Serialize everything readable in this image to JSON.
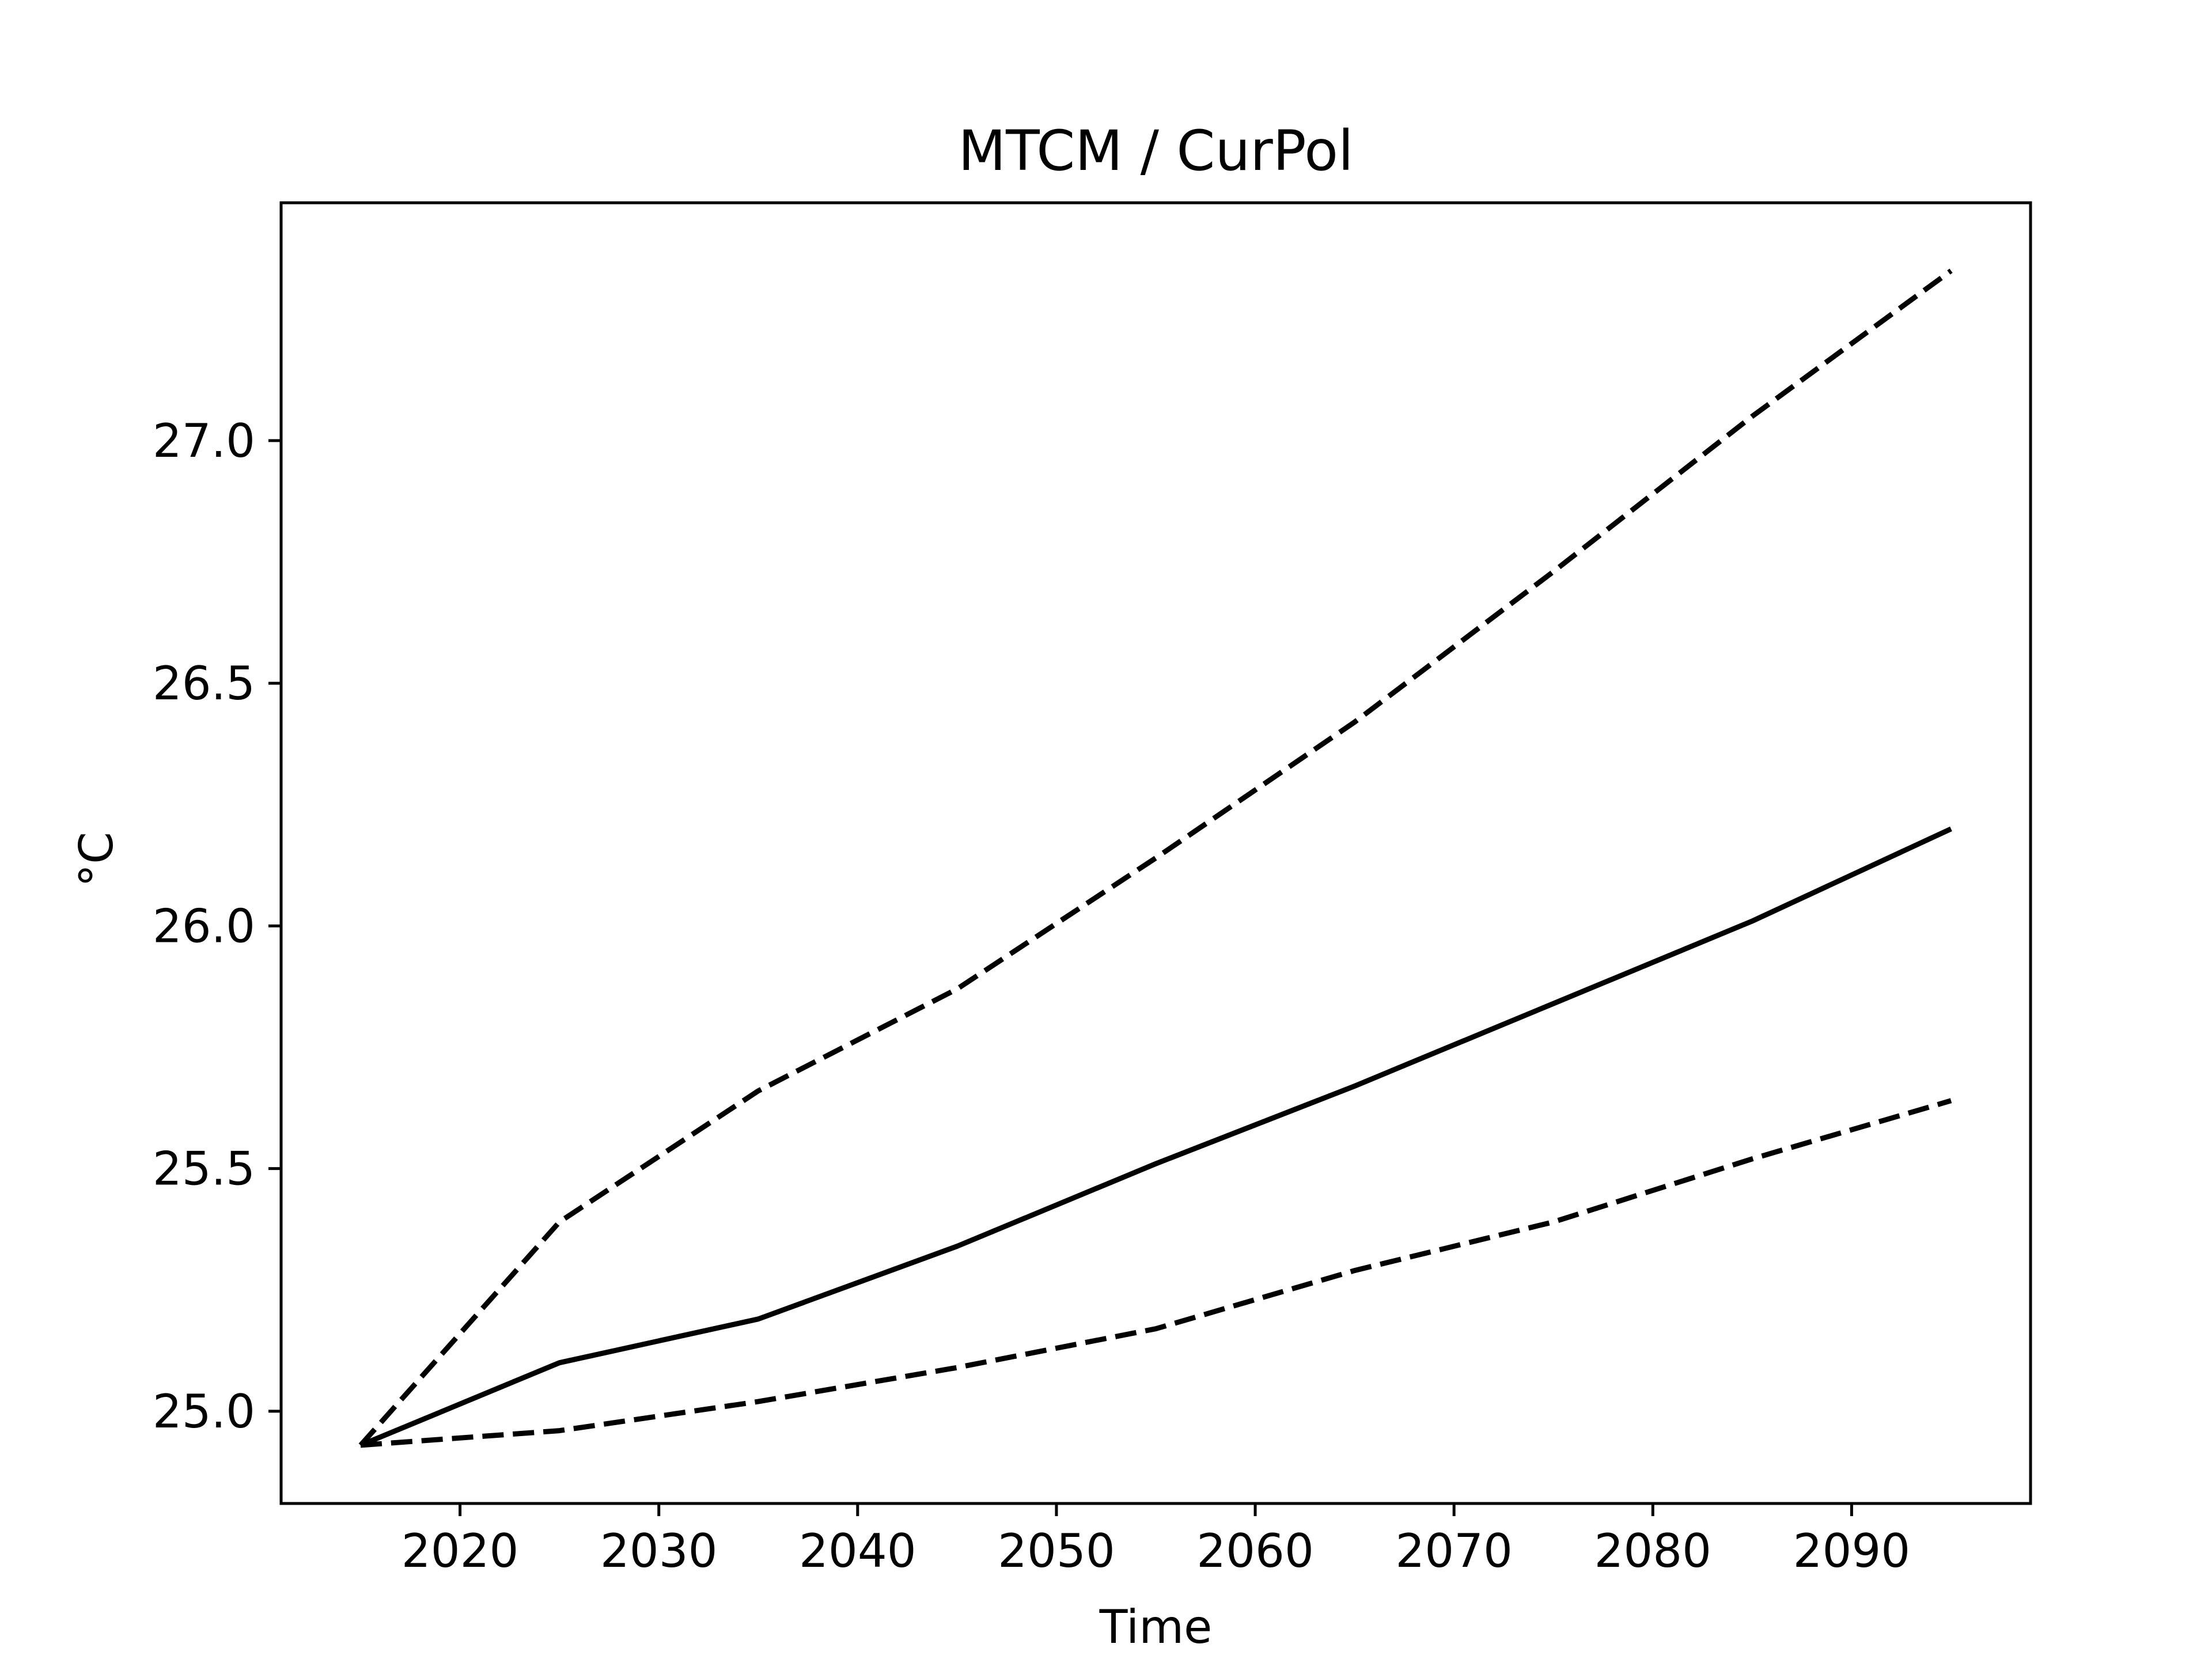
{
  "chart_data": {
    "type": "line",
    "title": "MTCM / CurPol",
    "xlabel": "Time",
    "ylabel": "°C",
    "xlim": [
      2011,
      2099
    ],
    "ylim": [
      24.81,
      27.49
    ],
    "x_ticks": [
      2020,
      2030,
      2040,
      2050,
      2060,
      2070,
      2080,
      2090
    ],
    "y_ticks": [
      25.0,
      25.5,
      26.0,
      26.5,
      27.0
    ],
    "x_tick_labels": [
      "2020",
      "2030",
      "2040",
      "2050",
      "2060",
      "2070",
      "2080",
      "2090"
    ],
    "y_tick_labels": [
      "25.0",
      "25.5",
      "26.0",
      "26.5",
      "27.0"
    ],
    "grid": false,
    "legend": "none",
    "x": [
      2015,
      2025,
      2035,
      2045,
      2055,
      2065,
      2075,
      2085,
      2095
    ],
    "series": [
      {
        "style": "solid",
        "color": "#000000",
        "values": [
          24.93,
          25.1,
          25.19,
          25.34,
          25.51,
          25.67,
          25.84,
          26.01,
          26.2
        ]
      },
      {
        "style": "dashed",
        "color": "#000000",
        "values": [
          24.93,
          25.39,
          25.66,
          25.87,
          26.14,
          26.42,
          26.73,
          27.05,
          27.35
        ]
      },
      {
        "style": "dashed",
        "color": "#000000",
        "values": [
          24.93,
          24.96,
          25.02,
          25.09,
          25.17,
          25.29,
          25.39,
          25.52,
          25.64
        ]
      }
    ]
  }
}
